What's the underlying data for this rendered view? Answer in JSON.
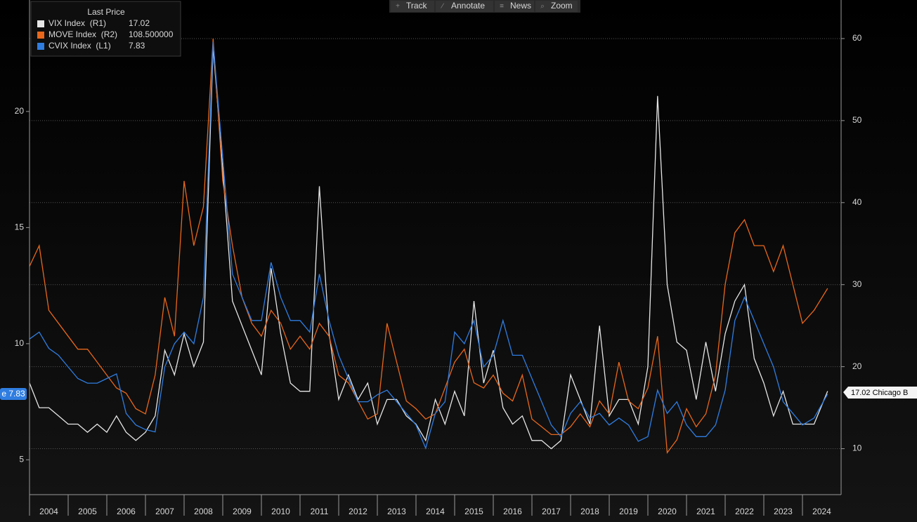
{
  "chart_data": {
    "type": "line",
    "toolbar": [
      "Track",
      "Annotate",
      "News",
      "Zoom"
    ],
    "legend_title": "Last Price",
    "tags": {
      "left": "e 7.83",
      "right": "17.02 Chicago B"
    },
    "x": [
      2004,
      2004.25,
      2004.5,
      2004.75,
      2005,
      2005.25,
      2005.5,
      2005.75,
      2006,
      2006.25,
      2006.5,
      2006.75,
      2007,
      2007.25,
      2007.5,
      2007.75,
      2008,
      2008.25,
      2008.5,
      2008.75,
      2009,
      2009.25,
      2009.5,
      2009.75,
      2010,
      2010.25,
      2010.5,
      2010.75,
      2011,
      2011.25,
      2011.5,
      2011.75,
      2012,
      2012.25,
      2012.5,
      2012.75,
      2013,
      2013.25,
      2013.5,
      2013.75,
      2014,
      2014.25,
      2014.5,
      2014.75,
      2015,
      2015.25,
      2015.5,
      2015.75,
      2016,
      2016.25,
      2016.5,
      2016.75,
      2017,
      2017.25,
      2017.5,
      2017.75,
      2018,
      2018.25,
      2018.5,
      2018.75,
      2019,
      2019.25,
      2019.5,
      2019.75,
      2020,
      2020.25,
      2020.5,
      2020.75,
      2021,
      2021.25,
      2021.5,
      2021.75,
      2022,
      2022.25,
      2022.5,
      2022.75,
      2023,
      2023.25,
      2023.5,
      2023.75,
      2024,
      2024.3,
      2024.65
    ],
    "series": [
      {
        "name": "VIX Index  (R1)",
        "last_label": "17.02",
        "color": "#e6e6e6",
        "axis": "y2",
        "values": [
          18,
          15,
          15,
          14,
          13,
          13,
          12,
          13,
          12,
          14,
          12,
          11,
          12,
          14,
          22,
          19,
          24,
          20,
          23,
          59,
          44,
          28,
          25,
          22,
          19,
          32,
          24,
          18,
          17,
          17,
          42,
          24,
          16,
          19,
          16,
          18,
          13,
          16,
          16,
          14,
          13,
          11,
          16,
          13,
          17,
          14,
          28,
          18,
          22,
          15,
          13,
          14,
          11,
          11,
          10,
          11,
          19,
          16,
          13,
          25,
          14,
          16,
          16,
          13,
          20,
          53,
          30,
          23,
          22,
          16,
          23,
          17,
          24,
          28,
          30,
          21,
          18,
          14,
          17,
          13,
          13,
          13,
          17.02
        ]
      },
      {
        "name": "MOVE Index  (R2)",
        "last_label": "108.500000",
        "color": "#e8671b",
        "axis": "y3",
        "values": [
          117,
          125,
          100,
          95,
          90,
          85,
          85,
          80,
          75,
          70,
          68,
          62,
          60,
          75,
          105,
          90,
          150,
          125,
          140,
          205,
          150,
          125,
          105,
          95,
          90,
          100,
          95,
          85,
          90,
          85,
          95,
          90,
          75,
          72,
          65,
          58,
          60,
          95,
          80,
          65,
          62,
          58,
          60,
          70,
          80,
          85,
          72,
          70,
          75,
          68,
          65,
          75,
          58,
          55,
          52,
          52,
          55,
          60,
          55,
          65,
          60,
          80,
          65,
          62,
          70,
          90,
          45,
          50,
          62,
          55,
          60,
          75,
          110,
          130,
          135,
          125,
          125,
          115,
          125,
          110,
          95,
          100,
          108.5
        ]
      },
      {
        "name": "CVIX Index  (L1)",
        "last_label": "7.83",
        "color": "#2f7de1",
        "axis": "y",
        "values": [
          10.2,
          10.5,
          9.8,
          9.5,
          9.0,
          8.5,
          8.3,
          8.3,
          8.5,
          8.7,
          7.0,
          6.5,
          6.3,
          6.2,
          9.0,
          10.0,
          10.5,
          10.0,
          12.0,
          23.0,
          18.0,
          13.0,
          12.0,
          11.0,
          11.0,
          13.5,
          12.0,
          11.0,
          11.0,
          10.5,
          13.0,
          11.0,
          9.5,
          8.5,
          7.5,
          7.5,
          7.8,
          8.0,
          7.5,
          7.0,
          6.5,
          5.5,
          7.0,
          7.5,
          10.5,
          10.0,
          11.0,
          9.0,
          9.5,
          11.0,
          9.5,
          9.5,
          8.5,
          7.5,
          6.5,
          6.0,
          7.0,
          7.5,
          6.8,
          7.0,
          6.5,
          6.8,
          6.5,
          5.8,
          6.0,
          8.0,
          7.0,
          7.5,
          6.5,
          6.0,
          6.0,
          6.5,
          8.0,
          11.0,
          12.0,
          11.0,
          10.0,
          9.0,
          7.5,
          7.0,
          6.5,
          6.8,
          7.83
        ]
      }
    ],
    "xlim": [
      2004,
      2025
    ],
    "xticks": [
      2004,
      2005,
      2006,
      2007,
      2008,
      2009,
      2010,
      2011,
      2012,
      2013,
      2014,
      2015,
      2016,
      2017,
      2018,
      2019,
      2020,
      2021,
      2022,
      2023,
      2024
    ],
    "ylim": [
      3.5,
      24.8
    ],
    "yticks": [
      5,
      10,
      15,
      20
    ],
    "y2lim": [
      4.4,
      64.7
    ],
    "y2ticks": [
      10,
      20,
      30,
      40,
      50,
      60
    ],
    "y3lim": [
      28.8,
      219.9
    ],
    "grid": true
  }
}
